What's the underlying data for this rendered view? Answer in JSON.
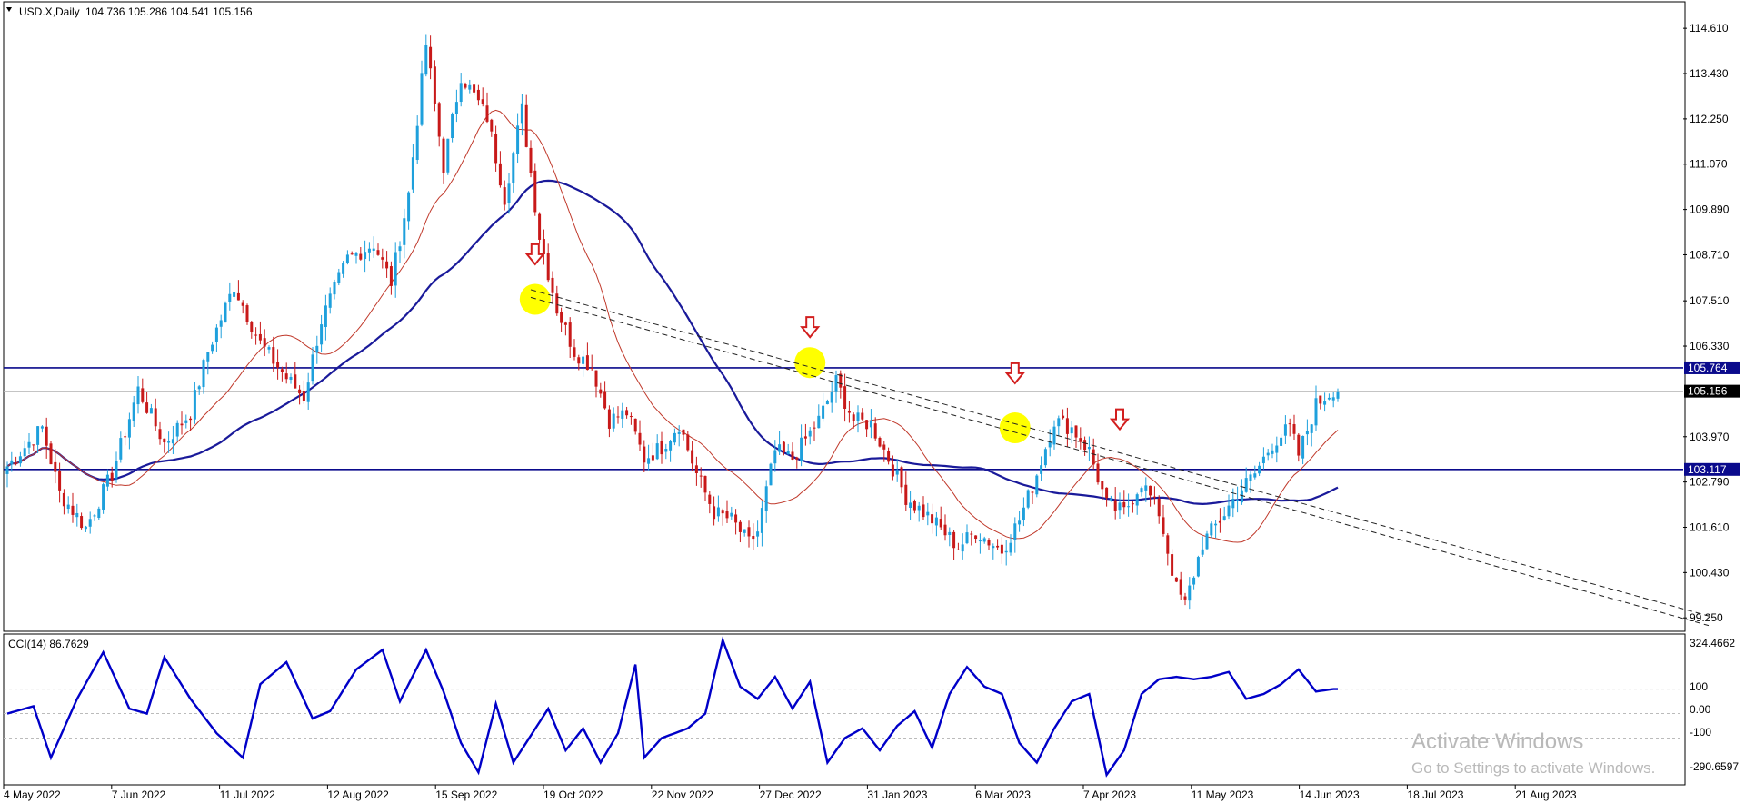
{
  "header": {
    "symbol": "USD.X,Daily",
    "ohlc": "104.736 105.286 104.541 105.156"
  },
  "indicator": {
    "label": "CCI(14) 86.7629",
    "axis": [
      "324.4662",
      "100",
      "0.00",
      "-100",
      "-290.6597"
    ]
  },
  "watermark": {
    "title": "Activate Windows",
    "subtitle": "Go to Settings to activate Windows."
  },
  "colors": {
    "bull": "#1ea0dc",
    "bear": "#c81919",
    "ma_fast": "#c0392b",
    "ma_slow": "#1a1a9a",
    "hline": "#0a0a8c",
    "cci": "#0000c8",
    "highlight": "#ffff00",
    "arrow": "#d21e1e"
  },
  "chart_data": [
    {
      "type": "candlestick",
      "title": "USD.X,Daily",
      "ylim": [
        98.9,
        115.3
      ],
      "y_ticks": [
        "114.610",
        "113.430",
        "112.250",
        "111.070",
        "109.890",
        "108.710",
        "107.510",
        "106.330",
        "103.970",
        "102.790",
        "101.610",
        "100.430",
        "99.250"
      ],
      "x_ticks": [
        "4 May 2022",
        "7 Jun 2022",
        "11 Jul 2022",
        "12 Aug 2022",
        "15 Sep 2022",
        "19 Oct 2022",
        "22 Nov 2022",
        "27 Dec 2022",
        "31 Jan 2023",
        "6 Mar 2023",
        "7 Apr 2023",
        "11 May 2023",
        "14 Jun 2023",
        "18 Jul 2023",
        "21 Aug 2023"
      ],
      "price_anchors": [
        [
          0,
          103.2
        ],
        [
          8,
          104.2
        ],
        [
          12,
          102.5
        ],
        [
          18,
          101.6
        ],
        [
          24,
          103.0
        ],
        [
          30,
          105.2
        ],
        [
          36,
          103.8
        ],
        [
          42,
          104.6
        ],
        [
          46,
          106.2
        ],
        [
          52,
          107.9
        ],
        [
          58,
          106.4
        ],
        [
          64,
          105.5
        ],
        [
          68,
          105.0
        ],
        [
          72,
          107.0
        ],
        [
          78,
          108.6
        ],
        [
          84,
          109.0
        ],
        [
          88,
          108.0
        ],
        [
          92,
          110.3
        ],
        [
          96,
          114.2
        ],
        [
          100,
          111.0
        ],
        [
          104,
          113.4
        ],
        [
          110,
          112.3
        ],
        [
          114,
          110.2
        ],
        [
          118,
          112.5
        ],
        [
          122,
          109.2
        ],
        [
          126,
          107.3
        ],
        [
          130,
          106.2
        ],
        [
          134,
          105.8
        ],
        [
          138,
          104.4
        ],
        [
          142,
          104.6
        ],
        [
          146,
          103.4
        ],
        [
          150,
          103.7
        ],
        [
          154,
          104.3
        ],
        [
          158,
          103.0
        ],
        [
          162,
          102.0
        ],
        [
          166,
          101.8
        ],
        [
          170,
          101.2
        ],
        [
          172,
          101.5
        ],
        [
          176,
          103.6
        ],
        [
          180,
          103.4
        ],
        [
          186,
          104.4
        ],
        [
          190,
          105.4
        ],
        [
          194,
          104.4
        ],
        [
          198,
          104.3
        ],
        [
          202,
          103.4
        ],
        [
          206,
          102.4
        ],
        [
          212,
          101.8
        ],
        [
          218,
          101.1
        ],
        [
          222,
          101.5
        ],
        [
          228,
          101.0
        ],
        [
          232,
          101.8
        ],
        [
          236,
          103.0
        ],
        [
          240,
          104.4
        ],
        [
          244,
          104.2
        ],
        [
          248,
          103.6
        ],
        [
          252,
          102.2
        ],
        [
          256,
          102.0
        ],
        [
          260,
          102.8
        ],
        [
          264,
          102.0
        ],
        [
          268,
          100.0
        ],
        [
          270,
          99.6
        ],
        [
          274,
          101.2
        ],
        [
          278,
          101.8
        ],
        [
          282,
          102.5
        ],
        [
          286,
          103.0
        ],
        [
          290,
          103.8
        ],
        [
          294,
          104.2
        ],
        [
          296,
          103.5
        ],
        [
          300,
          104.8
        ],
        [
          304,
          105.2
        ]
      ],
      "lines": [
        {
          "name": "",
          "style": "solid",
          "color": "#0a0a8c",
          "value": 105.764,
          "label": "105.764"
        },
        {
          "name": "",
          "style": "thin",
          "color": "#bbbbbb",
          "value": 105.156,
          "label": "105.156"
        },
        {
          "name": "",
          "style": "solid",
          "color": "#0a0a8c",
          "value": 103.117,
          "label": "103.117"
        }
      ],
      "trendlines": [
        {
          "from_bar": 120,
          "from_value": 107.8,
          "to_bar": 390,
          "to_value": 99.3
        },
        {
          "from_bar": 120,
          "from_value": 107.6,
          "to_bar": 390,
          "to_value": 99.05
        }
      ],
      "highlights": [
        {
          "bar": 121,
          "value": 107.55
        },
        {
          "bar": 184,
          "value": 105.9
        },
        {
          "bar": 231,
          "value": 104.2
        }
      ],
      "arrows": [
        {
          "bar": 121,
          "value": 108.7
        },
        {
          "bar": 184,
          "value": 106.8
        },
        {
          "bar": 231,
          "value": 105.6
        },
        {
          "bar": 255,
          "value": 104.4
        }
      ]
    },
    {
      "type": "line",
      "title": "CCI(14) 86.7629",
      "ylim": [
        -290.6597,
        324.4662
      ],
      "ref_levels": [
        100,
        0,
        -100
      ],
      "anchors": [
        [
          0,
          0
        ],
        [
          6,
          30
        ],
        [
          10,
          -180
        ],
        [
          16,
          60
        ],
        [
          22,
          250
        ],
        [
          28,
          20
        ],
        [
          32,
          0
        ],
        [
          36,
          230
        ],
        [
          42,
          60
        ],
        [
          48,
          -80
        ],
        [
          54,
          -180
        ],
        [
          58,
          120
        ],
        [
          64,
          210
        ],
        [
          70,
          -20
        ],
        [
          74,
          10
        ],
        [
          80,
          180
        ],
        [
          86,
          260
        ],
        [
          90,
          50
        ],
        [
          96,
          260
        ],
        [
          100,
          90
        ],
        [
          104,
          -120
        ],
        [
          108,
          -240
        ],
        [
          112,
          40
        ],
        [
          116,
          -200
        ],
        [
          120,
          -90
        ],
        [
          124,
          20
        ],
        [
          128,
          -150
        ],
        [
          132,
          -60
        ],
        [
          136,
          -200
        ],
        [
          140,
          -80
        ],
        [
          144,
          200
        ],
        [
          146,
          -180
        ],
        [
          150,
          -100
        ],
        [
          156,
          -60
        ],
        [
          160,
          0
        ],
        [
          164,
          300
        ],
        [
          168,
          110
        ],
        [
          172,
          60
        ],
        [
          176,
          150
        ],
        [
          180,
          20
        ],
        [
          184,
          130
        ],
        [
          188,
          -200
        ],
        [
          192,
          -100
        ],
        [
          196,
          -60
        ],
        [
          200,
          -150
        ],
        [
          204,
          -50
        ],
        [
          208,
          10
        ],
        [
          212,
          -140
        ],
        [
          216,
          80
        ],
        [
          220,
          190
        ],
        [
          224,
          110
        ],
        [
          228,
          80
        ],
        [
          232,
          -120
        ],
        [
          236,
          -200
        ],
        [
          240,
          -60
        ],
        [
          244,
          50
        ],
        [
          248,
          80
        ],
        [
          252,
          -250
        ],
        [
          256,
          -150
        ],
        [
          260,
          80
        ],
        [
          264,
          140
        ],
        [
          268,
          150
        ],
        [
          272,
          140
        ],
        [
          276,
          150
        ],
        [
          280,
          170
        ],
        [
          284,
          60
        ],
        [
          288,
          80
        ],
        [
          292,
          120
        ],
        [
          296,
          180
        ],
        [
          300,
          90
        ],
        [
          304,
          100
        ]
      ]
    }
  ]
}
